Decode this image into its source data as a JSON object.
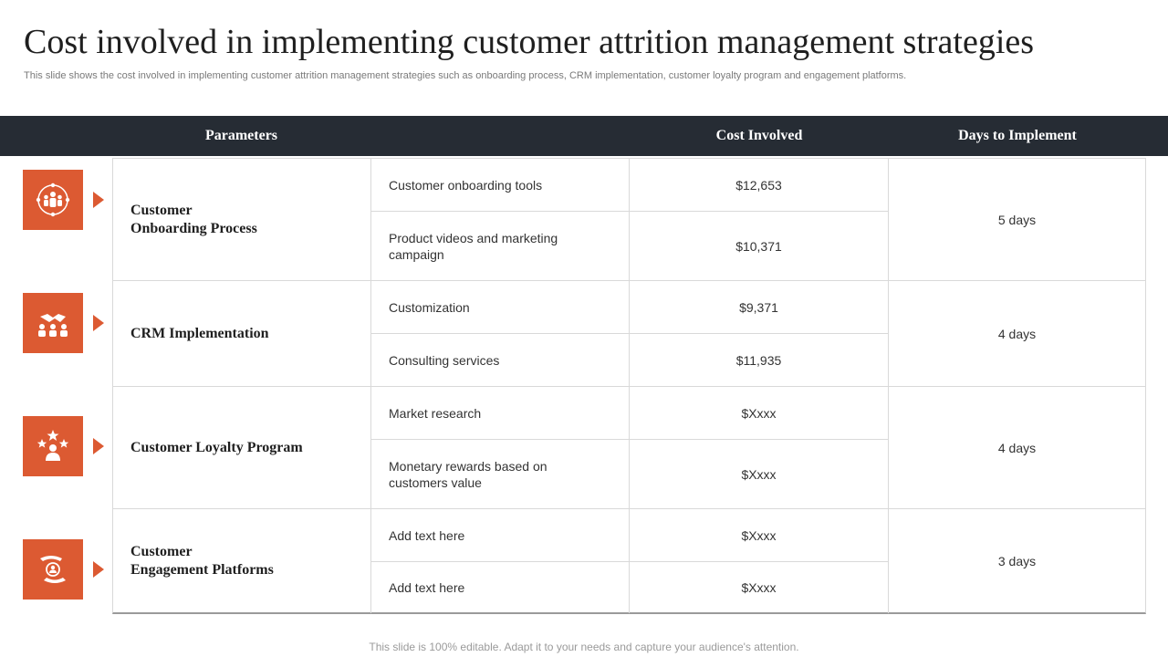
{
  "title": "Cost involved in implementing customer attrition management strategies",
  "subtitle": "This slide shows the cost involved in implementing customer attrition management strategies such as onboarding process, CRM implementation, customer loyalty program and engagement platforms.",
  "header": {
    "parameters": "Parameters",
    "cost": "Cost Involved",
    "days": "Days to Implement"
  },
  "rows": [
    {
      "icon": "team-network-icon",
      "parameter": "Customer\nOnboarding Process",
      "items": [
        {
          "label": "Customer onboarding tools",
          "cost": "$12,653"
        },
        {
          "label": "Product videos and marketing campaign",
          "cost": "$10,371"
        }
      ],
      "days": "5 days"
    },
    {
      "icon": "handshake-icon",
      "parameter": "CRM  Implementation",
      "items": [
        {
          "label": "Customization",
          "cost": "$9,371"
        },
        {
          "label": "Consulting services",
          "cost": "$11,935"
        }
      ],
      "days": "4 days"
    },
    {
      "icon": "star-customer-icon",
      "parameter": "Customer Loyalty Program",
      "items": [
        {
          "label": "Market research",
          "cost": "$Xxxx"
        },
        {
          "label": "Monetary rewards based on customers value",
          "cost": "$Xxxx"
        }
      ],
      "days": "4 days"
    },
    {
      "icon": "hand-care-icon",
      "parameter": "Customer\nEngagement Platforms",
      "items": [
        {
          "label": "Add text here",
          "cost": "$Xxxx"
        },
        {
          "label": "Add text here",
          "cost": "$Xxxx"
        }
      ],
      "days": "3 days"
    }
  ],
  "footer": "This slide is 100% editable. Adapt it to your needs and capture your audience's attention.",
  "colors": {
    "accent": "#dc5a32",
    "header_bg": "#262c34"
  }
}
